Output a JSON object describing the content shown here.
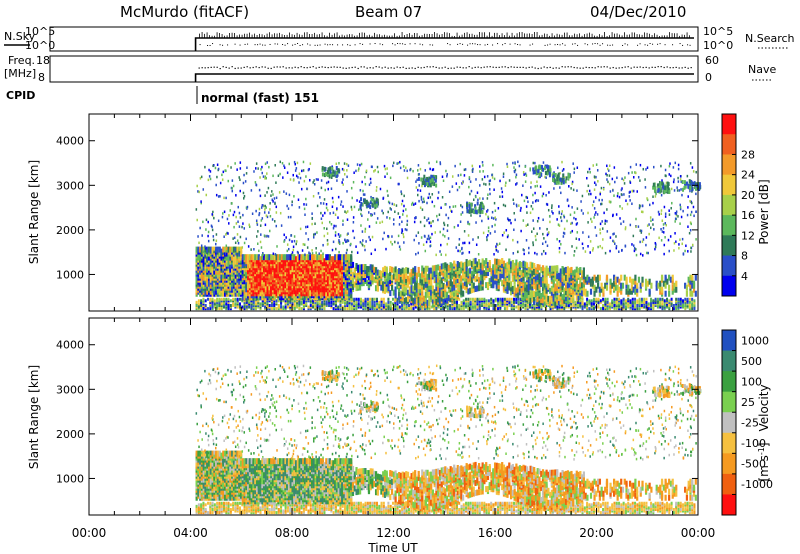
{
  "header": {
    "station": "McMurdo (fitACF)",
    "beam": "Beam 07",
    "date": "04/Dec/2010"
  },
  "meta_panels": {
    "nsky_label": "N.Sky",
    "nsky_ticks": [
      "10^5",
      "10^0"
    ],
    "nsearch_label": "N.Search",
    "nsearch_ticks": [
      "10^5",
      "10^0"
    ],
    "freq_label": "Freq.",
    "freq_unit": "[MHz]",
    "freq_ticks": [
      "18",
      "8"
    ],
    "nave_label": "Nave",
    "nave_ticks": [
      "60",
      "0"
    ],
    "cpid_label": "CPID",
    "cpid_value": "normal (fast) 151"
  },
  "chart_data": [
    {
      "type": "heatmap",
      "name": "power-panel",
      "ylabel": "Slant Range [km]",
      "yticks": [
        1000,
        2000,
        3000,
        4000
      ],
      "ylim": [
        180,
        4600
      ],
      "xlim": [
        0,
        24
      ],
      "data_start_hour": 4.2,
      "colorbar": {
        "label": "Power [dB]",
        "ticks": [
          "4",
          "8",
          "12",
          "16",
          "20",
          "24",
          "28"
        ],
        "colors": [
          "#0000ee",
          "#2a4fc8",
          "#2f7a58",
          "#5cb85c",
          "#a8d04a",
          "#f0c83a",
          "#f39a2a",
          "#f06020",
          "#ff1010"
        ]
      }
    },
    {
      "type": "heatmap",
      "name": "velocity-panel",
      "ylabel": "Slant Range [km]",
      "yticks": [
        1000,
        2000,
        3000,
        4000
      ],
      "ylim": [
        180,
        4600
      ],
      "xlim": [
        0,
        24
      ],
      "data_start_hour": 4.2,
      "xlabel": "Time UT",
      "xticks": [
        "00:00",
        "04:00",
        "08:00",
        "12:00",
        "16:00",
        "20:00",
        "00:00"
      ],
      "colorbar": {
        "label": "Velocity",
        "unit": "[m s",
        "unit_exp": "-1",
        "ticks": [
          "1000",
          "500",
          "100",
          "25",
          "-25",
          "-100",
          "-500",
          "-1000"
        ],
        "colors": [
          "#2050c0",
          "#3a8a70",
          "#3aa040",
          "#7ad050",
          "#c0c0c0",
          "#f5c040",
          "#f59a20",
          "#f06010",
          "#ff1010"
        ]
      }
    }
  ]
}
